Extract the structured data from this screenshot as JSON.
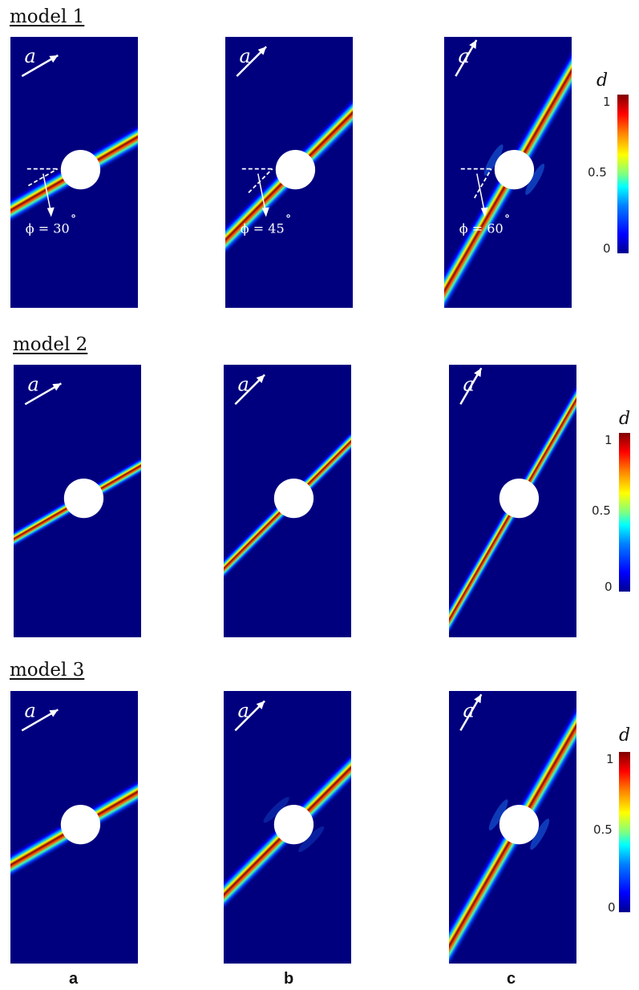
{
  "models": [
    {
      "title": "model 1",
      "panels": [
        {
          "column": "a",
          "angle_deg": 30,
          "phi_label": "ϕ = 30",
          "deg_mark": "∘"
        },
        {
          "column": "b",
          "angle_deg": 45,
          "phi_label": "ϕ = 45",
          "deg_mark": "∘"
        },
        {
          "column": "c",
          "angle_deg": 60,
          "phi_label": "ϕ = 60",
          "deg_mark": "∘"
        }
      ]
    },
    {
      "title": "model 2",
      "panels": [
        {
          "column": "a",
          "angle_deg": 30
        },
        {
          "column": "b",
          "angle_deg": 45
        },
        {
          "column": "c",
          "angle_deg": 60
        }
      ]
    },
    {
      "title": "model 3",
      "panels": [
        {
          "column": "a",
          "angle_deg": 30
        },
        {
          "column": "b",
          "angle_deg": 45
        },
        {
          "column": "c",
          "angle_deg": 60
        }
      ]
    }
  ],
  "loading_direction_label": "a",
  "colorbar": {
    "title": "d",
    "ticks": [
      "1",
      "0.5",
      "0"
    ],
    "range": [
      0,
      1
    ],
    "colormap": "jet"
  },
  "column_labels": [
    "a",
    "b",
    "c"
  ],
  "colors": {
    "background": "#00007f",
    "hole": "#ffffff",
    "band_core": "#8b0000",
    "annotation": "#ffffff"
  }
}
